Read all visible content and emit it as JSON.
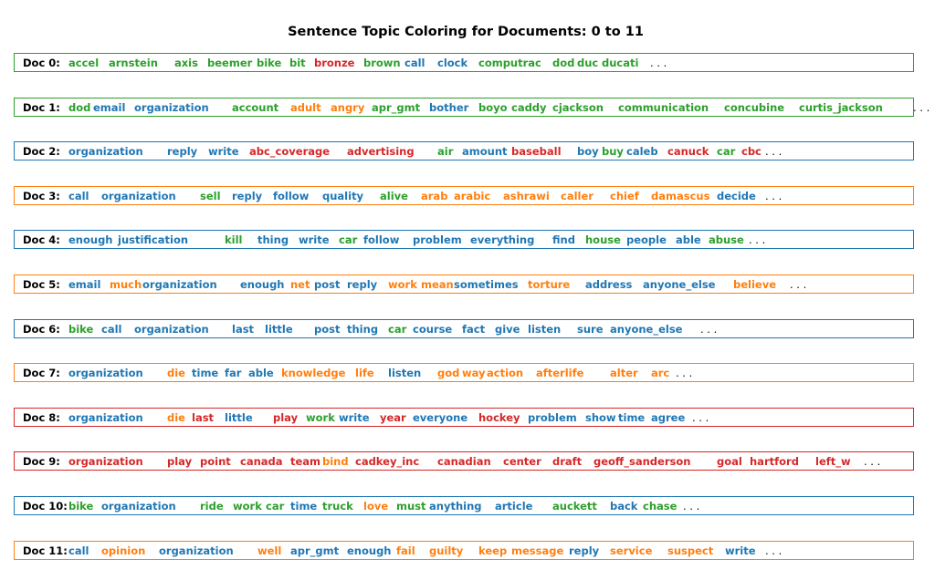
{
  "chart_data": {
    "type": "table",
    "title": "Sentence Topic Coloring for Documents: 0 to 11",
    "topic_colors": [
      "#1f77b4",
      "#ff7f0e",
      "#2ca02c",
      "#d62728"
    ],
    "ellipsis": ". . .",
    "documents": [
      {
        "label": "Doc 0:",
        "topic": 2,
        "words": [
          [
            "accel",
            2
          ],
          [
            "arnstein",
            2
          ],
          [
            "axis",
            2
          ],
          [
            "beemer",
            2
          ],
          [
            "bike",
            2
          ],
          [
            "bit",
            2
          ],
          [
            "bronze",
            3
          ],
          [
            "brown",
            2
          ],
          [
            "call",
            0
          ],
          [
            "clock",
            0
          ],
          [
            "computrac",
            2
          ],
          [
            "dod",
            2
          ],
          [
            "duc",
            2
          ],
          [
            "ducati",
            2
          ]
        ]
      },
      {
        "label": "Doc 1:",
        "topic": 2,
        "words": [
          [
            "dod",
            2
          ],
          [
            "email",
            0
          ],
          [
            "organization",
            0
          ],
          [
            "account",
            2
          ],
          [
            "adult",
            1
          ],
          [
            "angry",
            1
          ],
          [
            "apr_gmt",
            2
          ],
          [
            "bother",
            0
          ],
          [
            "boyo",
            2
          ],
          [
            "caddy",
            2
          ],
          [
            "cjackson",
            2
          ],
          [
            "communication",
            2
          ],
          [
            "concubine",
            2
          ],
          [
            "curtis_jackson",
            2
          ]
        ]
      },
      {
        "label": "Doc 2:",
        "topic": 0,
        "words": [
          [
            "organization",
            0
          ],
          [
            "reply",
            0
          ],
          [
            "write",
            0
          ],
          [
            "abc_coverage",
            3
          ],
          [
            "advertising",
            3
          ],
          [
            "air",
            2
          ],
          [
            "amount",
            0
          ],
          [
            "baseball",
            3
          ],
          [
            "boy",
            0
          ],
          [
            "buy",
            2
          ],
          [
            "caleb",
            0
          ],
          [
            "canuck",
            3
          ],
          [
            "car",
            2
          ],
          [
            "cbc",
            3
          ]
        ]
      },
      {
        "label": "Doc 3:",
        "topic": 1,
        "words": [
          [
            "call",
            0
          ],
          [
            "organization",
            0
          ],
          [
            "sell",
            2
          ],
          [
            "reply",
            0
          ],
          [
            "follow",
            0
          ],
          [
            "quality",
            0
          ],
          [
            "alive",
            2
          ],
          [
            "arab",
            1
          ],
          [
            "arabic",
            1
          ],
          [
            "ashrawi",
            1
          ],
          [
            "caller",
            1
          ],
          [
            "chief",
            1
          ],
          [
            "damascus",
            1
          ],
          [
            "decide",
            0
          ]
        ]
      },
      {
        "label": "Doc 4:",
        "topic": 0,
        "words": [
          [
            "enough",
            0
          ],
          [
            "justification",
            0
          ],
          [
            "kill",
            2
          ],
          [
            "thing",
            0
          ],
          [
            "write",
            0
          ],
          [
            "car",
            2
          ],
          [
            "follow",
            0
          ],
          [
            "problem",
            0
          ],
          [
            "everything",
            0
          ],
          [
            "find",
            0
          ],
          [
            "house",
            2
          ],
          [
            "people",
            0
          ],
          [
            "able",
            0
          ],
          [
            "abuse",
            2
          ]
        ]
      },
      {
        "label": "Doc 5:",
        "topic": 1,
        "words": [
          [
            "email",
            0
          ],
          [
            "much",
            1
          ],
          [
            "organization",
            0
          ],
          [
            "enough",
            0
          ],
          [
            "net",
            1
          ],
          [
            "post",
            0
          ],
          [
            "reply",
            0
          ],
          [
            "work",
            1
          ],
          [
            "mean",
            1
          ],
          [
            "sometimes",
            0
          ],
          [
            "torture",
            1
          ],
          [
            "address",
            0
          ],
          [
            "anyone_else",
            0
          ],
          [
            "believe",
            1
          ]
        ]
      },
      {
        "label": "Doc 6:",
        "topic": 0,
        "words": [
          [
            "bike",
            2
          ],
          [
            "call",
            0
          ],
          [
            "organization",
            0
          ],
          [
            "last",
            0
          ],
          [
            "little",
            0
          ],
          [
            "post",
            0
          ],
          [
            "thing",
            0
          ],
          [
            "car",
            2
          ],
          [
            "course",
            0
          ],
          [
            "fact",
            0
          ],
          [
            "give",
            0
          ],
          [
            "listen",
            0
          ],
          [
            "sure",
            0
          ],
          [
            "anyone_else",
            0
          ]
        ]
      },
      {
        "label": "Doc 7:",
        "topic": 1,
        "words": [
          [
            "organization",
            0
          ],
          [
            "die",
            1
          ],
          [
            "time",
            0
          ],
          [
            "far",
            0
          ],
          [
            "able",
            0
          ],
          [
            "knowledge",
            1
          ],
          [
            "life",
            1
          ],
          [
            "listen",
            0
          ],
          [
            "god",
            1
          ],
          [
            "way",
            1
          ],
          [
            "action",
            1
          ],
          [
            "afterlife",
            1
          ],
          [
            "alter",
            1
          ],
          [
            "arc",
            1
          ]
        ]
      },
      {
        "label": "Doc 8:",
        "topic": 3,
        "words": [
          [
            "organization",
            0
          ],
          [
            "die",
            1
          ],
          [
            "last",
            3
          ],
          [
            "little",
            0
          ],
          [
            "play",
            3
          ],
          [
            "work",
            2
          ],
          [
            "write",
            0
          ],
          [
            "year",
            3
          ],
          [
            "everyone",
            0
          ],
          [
            "hockey",
            3
          ],
          [
            "problem",
            0
          ],
          [
            "show",
            0
          ],
          [
            "time",
            0
          ],
          [
            "agree",
            0
          ]
        ]
      },
      {
        "label": "Doc 9:",
        "topic": 3,
        "words": [
          [
            "organization",
            3
          ],
          [
            "play",
            3
          ],
          [
            "point",
            3
          ],
          [
            "canada",
            3
          ],
          [
            "team",
            3
          ],
          [
            "bind",
            1
          ],
          [
            "cadkey_inc",
            3
          ],
          [
            "canadian",
            3
          ],
          [
            "center",
            3
          ],
          [
            "draft",
            3
          ],
          [
            "geoff_sanderson",
            3
          ],
          [
            "goal",
            3
          ],
          [
            "hartford",
            3
          ],
          [
            "left_w",
            3
          ]
        ]
      },
      {
        "label": "Doc 10:",
        "topic": 0,
        "words": [
          [
            "bike",
            2
          ],
          [
            "organization",
            0
          ],
          [
            "ride",
            2
          ],
          [
            "work",
            2
          ],
          [
            "car",
            2
          ],
          [
            "time",
            0
          ],
          [
            "truck",
            2
          ],
          [
            "love",
            1
          ],
          [
            "must",
            2
          ],
          [
            "anything",
            0
          ],
          [
            "article",
            0
          ],
          [
            "auckett",
            2
          ],
          [
            "back",
            0
          ],
          [
            "chase",
            2
          ]
        ]
      },
      {
        "label": "Doc 11:",
        "topic": 1,
        "words": [
          [
            "call",
            0
          ],
          [
            "opinion",
            1
          ],
          [
            "organization",
            0
          ],
          [
            "well",
            1
          ],
          [
            "apr_gmt",
            0
          ],
          [
            "enough",
            0
          ],
          [
            "fail",
            1
          ],
          [
            "guilty",
            1
          ],
          [
            "keep",
            1
          ],
          [
            "message",
            1
          ],
          [
            "reply",
            0
          ],
          [
            "service",
            1
          ],
          [
            "suspect",
            1
          ],
          [
            "write",
            0
          ]
        ]
      }
    ]
  }
}
